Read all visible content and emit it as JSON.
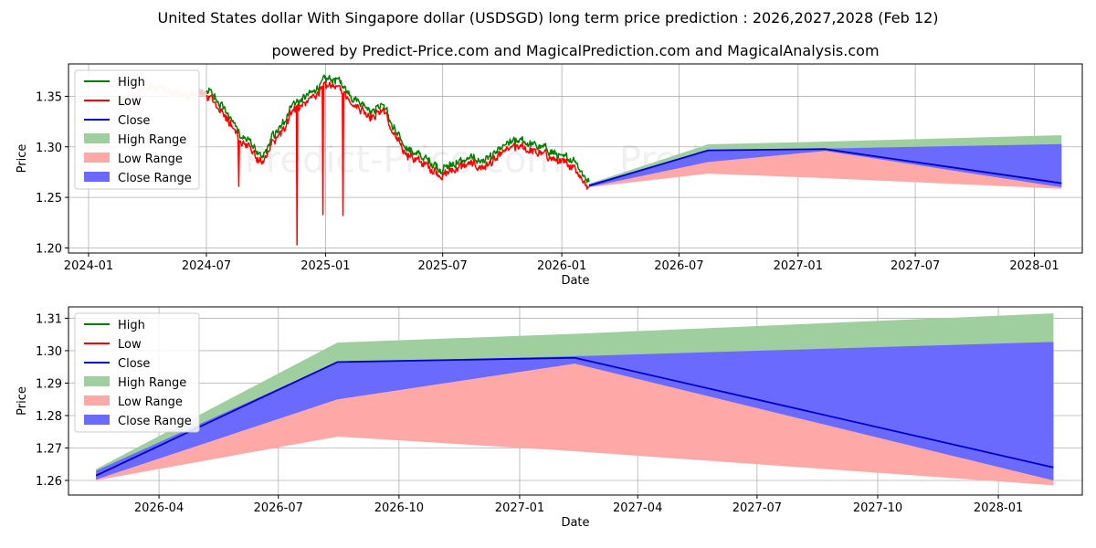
{
  "page": {
    "title": "United States dollar With Singapore dollar (USDSGD) long term price prediction : 2026,2027,2028 (Feb 12)",
    "subtitle": "powered by Predict-Price.com and MagicalPrediction.com and MagicalAnalysis.com",
    "watermark": "Predict-Price.com"
  },
  "colors": {
    "high": "#008000",
    "low": "#ff0000",
    "close": "#0000cc",
    "high_range": "#9fcf9f",
    "low_range": "#ffa8a8",
    "close_range": "#6a6aff"
  },
  "legend": [
    "High",
    "Low",
    "Close",
    "High Range",
    "Low Range",
    "Close Range"
  ],
  "chart_data": [
    {
      "type": "line",
      "xlabel": "Date",
      "ylabel": "Price",
      "legend_position": "top-left",
      "grid": true,
      "xlim": [
        "2023-12-01",
        "2028-03-15"
      ],
      "ylim": [
        1.195,
        1.382
      ],
      "xticks": [
        "2024-01",
        "2024-07",
        "2025-01",
        "2025-07",
        "2026-01",
        "2026-07",
        "2027-01",
        "2027-07",
        "2028-01"
      ],
      "yticks": [
        1.2,
        1.25,
        1.3,
        1.35
      ],
      "history_anchors": {
        "dates": [
          "2024-02-10",
          "2024-03-10",
          "2024-04-10",
          "2024-05-10",
          "2024-06-10",
          "2024-07-01",
          "2024-07-20",
          "2024-08-10",
          "2024-08-25",
          "2024-09-10",
          "2024-09-25",
          "2024-10-10",
          "2024-10-25",
          "2024-11-10",
          "2024-11-25",
          "2024-12-10",
          "2024-12-25",
          "2025-01-10",
          "2025-01-25",
          "2025-02-10",
          "2025-02-25",
          "2025-03-15",
          "2025-04-01",
          "2025-04-15",
          "2025-05-01",
          "2025-05-20",
          "2025-06-10",
          "2025-07-01",
          "2025-07-20",
          "2025-08-10",
          "2025-09-01",
          "2025-09-20",
          "2025-10-10",
          "2025-11-01",
          "2025-11-20",
          "2025-12-10",
          "2026-01-01",
          "2026-01-20",
          "2026-02-05",
          "2026-02-12"
        ],
        "close": [
          1.343,
          1.35,
          1.362,
          1.352,
          1.35,
          1.355,
          1.343,
          1.322,
          1.307,
          1.3,
          1.283,
          1.306,
          1.316,
          1.34,
          1.343,
          1.35,
          1.36,
          1.365,
          1.36,
          1.348,
          1.341,
          1.333,
          1.34,
          1.315,
          1.3,
          1.29,
          1.283,
          1.275,
          1.281,
          1.285,
          1.283,
          1.29,
          1.3,
          1.303,
          1.298,
          1.294,
          1.286,
          1.285,
          1.268,
          1.262
        ]
      },
      "low_spikes": [
        {
          "date": "2024-08-20",
          "low": 1.261
        },
        {
          "date": "2024-11-18",
          "low": 1.203
        },
        {
          "date": "2024-12-28",
          "low": 1.233
        },
        {
          "date": "2025-01-28",
          "low": 1.232
        }
      ],
      "forecast": {
        "dates": [
          "2026-02-12",
          "2026-08-15",
          "2027-02-12",
          "2028-02-12"
        ],
        "close": [
          1.2615,
          1.2965,
          1.2978,
          1.264
        ],
        "high_range": {
          "upper": [
            1.2635,
            1.3025,
            1.3052,
            1.3115
          ],
          "lower": [
            1.2605,
            1.294,
            1.2965,
            1.2625
          ]
        },
        "low_range": {
          "upper": [
            1.262,
            1.2905,
            1.2963,
            1.262
          ],
          "lower": [
            1.26,
            1.2735,
            1.269,
            1.2585
          ]
        },
        "close_range": {
          "upper": [
            1.263,
            1.2965,
            1.2983,
            1.3027
          ],
          "lower": [
            1.2603,
            1.285,
            1.296,
            1.26
          ]
        }
      }
    },
    {
      "type": "area",
      "xlabel": "Date",
      "ylabel": "Price",
      "legend_position": "top-left",
      "grid": true,
      "xlim": [
        "2026-01-22",
        "2028-03-05"
      ],
      "ylim": [
        1.2555,
        1.3135
      ],
      "xticks": [
        "2026-04",
        "2026-07",
        "2026-10",
        "2027-01",
        "2027-04",
        "2027-07",
        "2027-10",
        "2028-01"
      ],
      "yticks": [
        1.26,
        1.27,
        1.28,
        1.29,
        1.3,
        1.31
      ],
      "forecast": {
        "dates": [
          "2026-02-12",
          "2026-08-15",
          "2027-02-12",
          "2028-02-12"
        ],
        "close": [
          1.2615,
          1.2965,
          1.2978,
          1.264
        ],
        "high_range": {
          "upper": [
            1.2635,
            1.3025,
            1.3052,
            1.3115
          ],
          "lower": [
            1.2605,
            1.294,
            1.2965,
            1.2625
          ]
        },
        "low_range": {
          "upper": [
            1.262,
            1.2905,
            1.2963,
            1.262
          ],
          "lower": [
            1.26,
            1.2735,
            1.269,
            1.2585
          ]
        },
        "close_range": {
          "upper": [
            1.263,
            1.2965,
            1.2983,
            1.3027
          ],
          "lower": [
            1.2603,
            1.285,
            1.296,
            1.26
          ]
        }
      }
    }
  ]
}
